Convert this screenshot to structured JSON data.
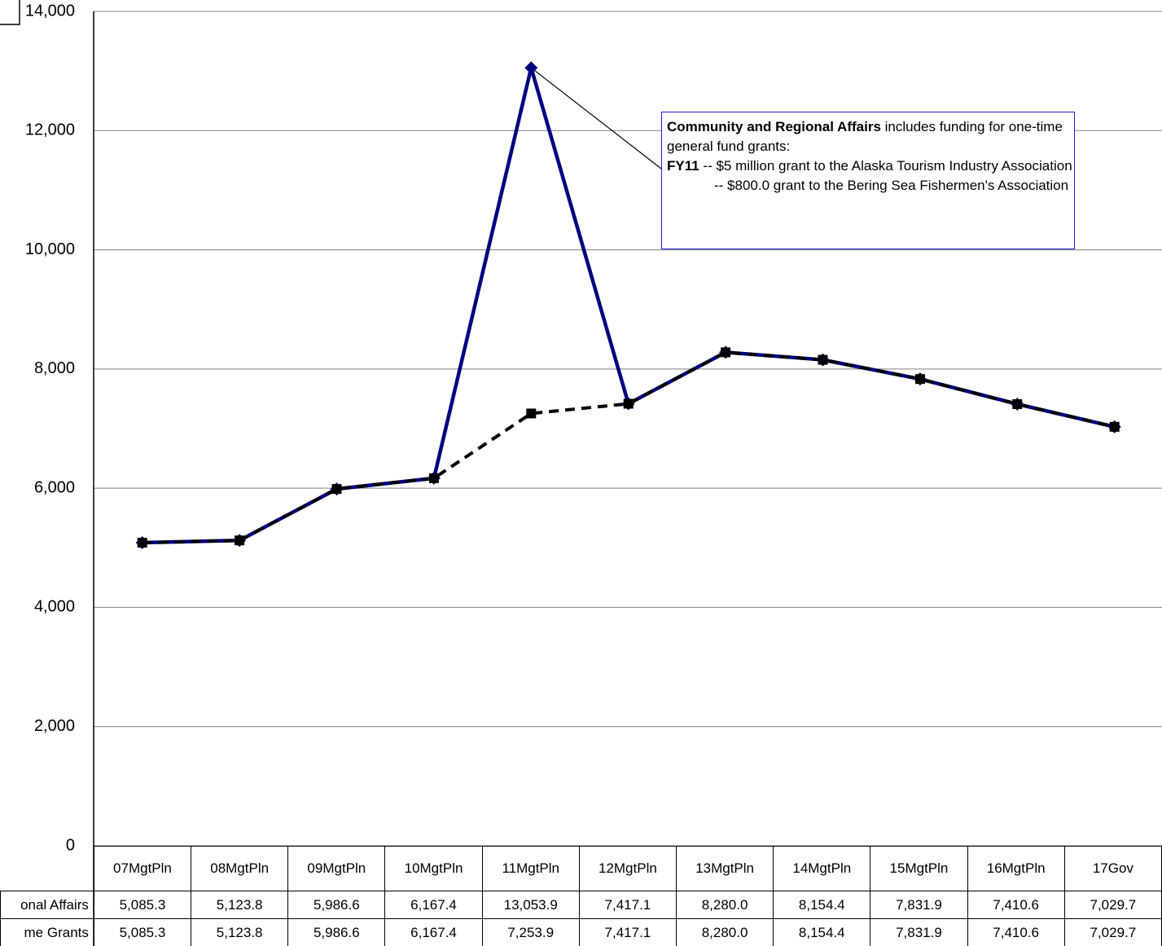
{
  "chart_data": {
    "type": "line",
    "categories": [
      "07MgtPln",
      "08MgtPln",
      "09MgtPln",
      "10MgtPln",
      "11MgtPln",
      "12MgtPln",
      "13MgtPln",
      "14MgtPln",
      "15MgtPln",
      "16MgtPln",
      "17Gov"
    ],
    "series": [
      {
        "name": "onal Affairs",
        "color": "#000080",
        "dash": false,
        "marker": "diamond",
        "values": [
          5085.3,
          5123.8,
          5986.6,
          6167.4,
          13053.9,
          7417.1,
          8280.0,
          8154.4,
          7831.9,
          7410.6,
          7029.7
        ],
        "value_labels": [
          "5,085.3",
          "5,123.8",
          "5,986.6",
          "6,167.4",
          "13,053.9",
          "7,417.1",
          "8,280.0",
          "8,154.4",
          "7,831.9",
          "7,410.6",
          "7,029.7"
        ]
      },
      {
        "name": "me Grants",
        "color": "#000000",
        "dash": true,
        "marker": "square",
        "values": [
          5085.3,
          5123.8,
          5986.6,
          6167.4,
          7253.9,
          7417.1,
          8280.0,
          8154.4,
          7831.9,
          7410.6,
          7029.7
        ],
        "value_labels": [
          "5,085.3",
          "5,123.8",
          "5,986.6",
          "6,167.4",
          "7,253.9",
          "7,417.1",
          "8,280.0",
          "8,154.4",
          "7,831.9",
          "7,410.6",
          "7,029.7"
        ]
      }
    ],
    "ylim": [
      0,
      14000
    ],
    "yticks": [
      0,
      {
        "value": 2000,
        "label": "2,000"
      },
      {
        "value": 4000,
        "label": "4,000"
      },
      {
        "value": 6000,
        "label": "6,000"
      },
      {
        "value": 8000,
        "label": "8,000"
      },
      {
        "value": 10000,
        "label": "10,000"
      },
      {
        "value": 12000,
        "label": "12,000"
      },
      {
        "value": 14000,
        "label": "14,000"
      }
    ],
    "grid": true,
    "annotation": {
      "bold1": "Community and Regional Affairs",
      "text1": " includes funding for one-time general fund grants:",
      "bold2": "FY11",
      "text2": " -- $5 million grant to the Alaska Tourism Industry Association",
      "text3": "-- $800.0 grant to the Bering Sea Fishermen's Association",
      "point": 4
    }
  }
}
